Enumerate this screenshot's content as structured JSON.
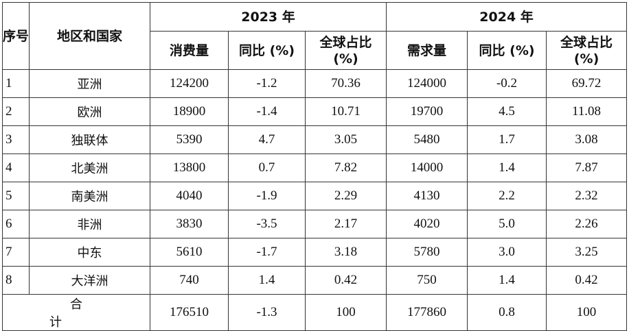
{
  "header": {
    "index": "序号",
    "region": "地区和国家",
    "year_2023": "2023 年",
    "year_2024": "2024 年",
    "sub_2023": [
      "消费量",
      "同比 (%)",
      "全球占比 (%)"
    ],
    "sub_2024": [
      "需求量",
      "同比 (%)",
      "全球占比 (%)"
    ]
  },
  "table": {
    "rows": [
      [
        "1",
        "亚洲",
        "124200",
        "-1.2",
        "70.36",
        "124000",
        "-0.2",
        "69.72"
      ],
      [
        "2",
        "欧洲",
        "18900",
        "-1.4",
        "10.71",
        "19700",
        "4.5",
        "11.08"
      ],
      [
        "3",
        "独联体",
        "5390",
        "4.7",
        "3.05",
        "5480",
        "1.7",
        "3.08"
      ],
      [
        "4",
        "北美洲",
        "13800",
        "0.7",
        "7.82",
        "14000",
        "1.4",
        "7.87"
      ],
      [
        "5",
        "南美洲",
        "4040",
        "-1.9",
        "2.29",
        "4130",
        "2.2",
        "2.32"
      ],
      [
        "6",
        "非洲",
        "3830",
        "-3.5",
        "2.17",
        "4020",
        "5.0",
        "2.26"
      ],
      [
        "7",
        "中东",
        "5610",
        "-1.7",
        "3.18",
        "5780",
        "3.0",
        "3.25"
      ],
      [
        "8",
        "大洋洲",
        "740",
        "1.4",
        "0.42",
        "750",
        "1.4",
        "0.42"
      ]
    ],
    "total": [
      "合计",
      "176510",
      "-1.3",
      "100",
      "177860",
      "0.8",
      "100"
    ]
  }
}
